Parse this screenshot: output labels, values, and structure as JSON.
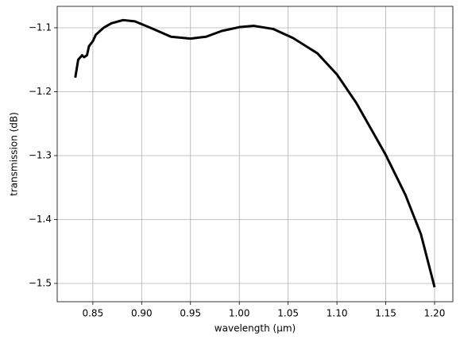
{
  "chart_data": {
    "type": "line",
    "xlabel": "wavelength (μm)",
    "ylabel": "transmission (dB)",
    "x": [
      0.832,
      0.835,
      0.839,
      0.841,
      0.844,
      0.846,
      0.85,
      0.853,
      0.861,
      0.869,
      0.881,
      0.893,
      0.909,
      0.93,
      0.95,
      0.966,
      0.982,
      1.0,
      1.015,
      1.035,
      1.055,
      1.08,
      1.1,
      1.12,
      1.15,
      1.17,
      1.186,
      1.2
    ],
    "series": [
      {
        "color": "#000000",
        "values": [
          -1.178,
          -1.15,
          -1.143,
          -1.146,
          -1.143,
          -1.129,
          -1.121,
          -1.111,
          -1.1,
          -1.093,
          -1.088,
          -1.09,
          -1.1,
          -1.114,
          -1.117,
          -1.114,
          -1.105,
          -1.099,
          -1.097,
          -1.102,
          -1.116,
          -1.14,
          -1.173,
          -1.218,
          -1.299,
          -1.361,
          -1.423,
          -1.506
        ]
      }
    ],
    "xlim": [
      0.8135,
      1.2187
    ],
    "ylim": [
      -1.5286,
      -1.0665
    ],
    "xticks": [
      0.85,
      {
        "value": 0.9,
        "label": "0.90"
      },
      0.95,
      {
        "value": 1.0,
        "label": "1.00"
      },
      1.05,
      {
        "value": 1.1,
        "label": "1.10"
      },
      1.15,
      {
        "value": 1.2,
        "label": "1.20"
      }
    ],
    "yticks": [
      {
        "value": -1.5,
        "label": "−1.5"
      },
      {
        "value": -1.4,
        "label": "−1.4"
      },
      {
        "value": -1.3,
        "label": "−1.3"
      },
      {
        "value": -1.2,
        "label": "−1.2"
      },
      {
        "value": -1.1,
        "label": "−1.1"
      }
    ],
    "grid": true
  }
}
